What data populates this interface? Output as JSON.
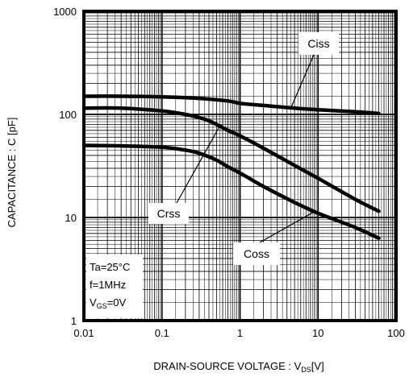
{
  "chart_data": {
    "type": "line",
    "x_scale": "log",
    "y_scale": "log",
    "xlim": [
      0.01,
      100
    ],
    "ylim": [
      1,
      1000
    ],
    "x_ticks": [
      {
        "value": 0.01,
        "label": "0.01"
      },
      {
        "value": 0.1,
        "label": "0.1"
      },
      {
        "value": 1,
        "label": "1"
      },
      {
        "value": 10,
        "label": "10"
      },
      {
        "value": 100,
        "label": "100"
      }
    ],
    "y_ticks": [
      {
        "value": 1,
        "label": "1"
      },
      {
        "value": 10,
        "label": "10"
      },
      {
        "value": 100,
        "label": "100"
      },
      {
        "value": 1000,
        "label": "1000"
      }
    ],
    "grid": true,
    "xlabel": {
      "main": "DRAIN-SOURCE VOLTAGE : V",
      "sub": "DS",
      "unit": "[V]"
    },
    "ylabel": "CAPACITANCE : C [pF]",
    "series": [
      {
        "name": "Ciss",
        "x": [
          0.01,
          0.03,
          0.1,
          0.3,
          0.7,
          1,
          2,
          5,
          10,
          30,
          60
        ],
        "y": [
          150,
          150,
          148,
          143,
          135,
          128,
          122,
          115,
          111,
          106,
          102
        ]
      },
      {
        "name": "Crss",
        "x": [
          0.01,
          0.03,
          0.1,
          0.2,
          0.35,
          0.5,
          0.7,
          1,
          2,
          5,
          10,
          30,
          60
        ],
        "y": [
          115,
          115,
          108,
          100,
          90,
          80,
          70,
          62,
          47,
          32,
          24,
          15,
          11.5
        ]
      },
      {
        "name": "Coss",
        "x": [
          0.01,
          0.03,
          0.1,
          0.2,
          0.3,
          0.5,
          0.7,
          1,
          2,
          5,
          10,
          30,
          60
        ],
        "y": [
          50,
          49.5,
          48,
          45,
          42,
          36,
          31,
          27,
          20,
          14,
          11,
          8,
          6.3
        ]
      }
    ],
    "annotations": [
      {
        "text": "Ciss",
        "series": "Ciss",
        "pointer_x": 4.5
      },
      {
        "text": "Crss",
        "series": "Crss",
        "pointer_x": 0.55
      },
      {
        "text": "Coss",
        "series": "Coss",
        "pointer_x": 9
      }
    ],
    "conditions": {
      "ta": "Ta=25°C",
      "f": "f=1MHz",
      "vgs_main": "V",
      "vgs_sub": "GS",
      "vgs_value": "=0V"
    }
  }
}
